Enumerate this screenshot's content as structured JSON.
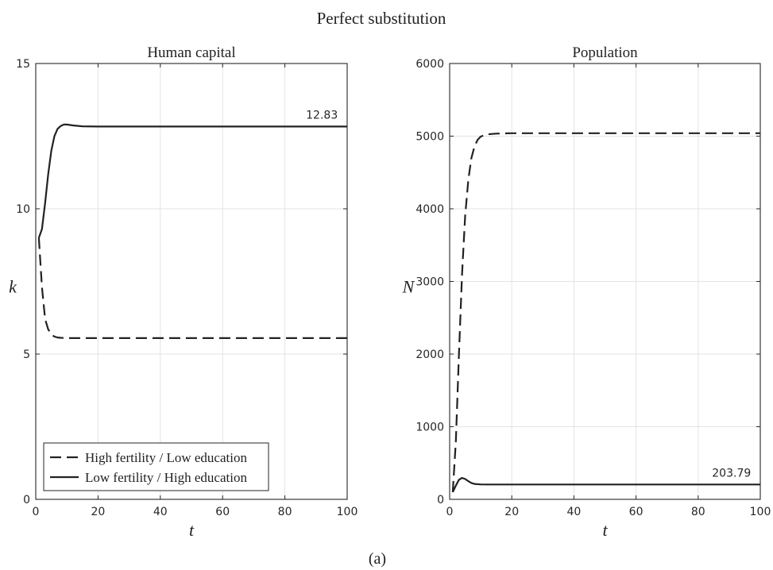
{
  "figure": {
    "suptitle": "Perfect substitution",
    "caption": "(a)"
  },
  "chart_data": [
    {
      "type": "line",
      "title": "Human capital",
      "xlabel": "t",
      "ylabel": "k",
      "xlim": [
        0,
        100
      ],
      "ylim": [
        0,
        15
      ],
      "xticks": [
        0,
        20,
        40,
        60,
        80,
        100
      ],
      "yticks": [
        0,
        5,
        10,
        15
      ],
      "grid": true,
      "legend_position": "bottom-left",
      "series": [
        {
          "name": "High fertility / Low education",
          "style": "dashed",
          "x": [
            1,
            2,
            3,
            4,
            5,
            6,
            7,
            8,
            10,
            12,
            15,
            20,
            30,
            50,
            100
          ],
          "y": [
            9.0,
            7.3,
            6.2,
            5.85,
            5.68,
            5.6,
            5.57,
            5.56,
            5.55,
            5.55,
            5.55,
            5.55,
            5.55,
            5.55,
            5.55
          ]
        },
        {
          "name": "Low fertility / High education",
          "style": "solid",
          "x": [
            1,
            2,
            3,
            4,
            5,
            6,
            7,
            8,
            9,
            10,
            12,
            15,
            20,
            30,
            50,
            100
          ],
          "y": [
            9.0,
            9.3,
            10.2,
            11.2,
            12.0,
            12.5,
            12.75,
            12.85,
            12.9,
            12.9,
            12.87,
            12.84,
            12.83,
            12.83,
            12.83,
            12.83
          ]
        }
      ],
      "annotations": [
        {
          "text": "12.83",
          "x": 97,
          "y": 12.83
        }
      ]
    },
    {
      "type": "line",
      "title": "Population",
      "xlabel": "t",
      "ylabel": "N",
      "xlim": [
        0,
        100
      ],
      "ylim": [
        0,
        6000
      ],
      "xticks": [
        0,
        20,
        40,
        60,
        80,
        100
      ],
      "yticks": [
        0,
        1000,
        2000,
        3000,
        4000,
        5000,
        6000
      ],
      "grid": true,
      "series": [
        {
          "name": "High fertility / Low education",
          "style": "dashed",
          "x": [
            1,
            2,
            3,
            4,
            5,
            6,
            7,
            8,
            9,
            10,
            12,
            15,
            20,
            30,
            50,
            100
          ],
          "y": [
            100,
            800,
            2000,
            3100,
            3900,
            4400,
            4700,
            4860,
            4950,
            4995,
            5025,
            5035,
            5040,
            5040,
            5040,
            5040
          ]
        },
        {
          "name": "Low fertility / High education",
          "style": "solid",
          "x": [
            1,
            2,
            3,
            4,
            5,
            6,
            7,
            8,
            10,
            12,
            15,
            20,
            30,
            50,
            100
          ],
          "y": [
            100,
            190,
            270,
            295,
            280,
            250,
            225,
            212,
            206,
            204,
            204,
            204,
            204,
            204,
            204
          ]
        }
      ],
      "annotations": [
        {
          "text": "203.79",
          "x": 97,
          "y": 203.79
        }
      ]
    }
  ]
}
